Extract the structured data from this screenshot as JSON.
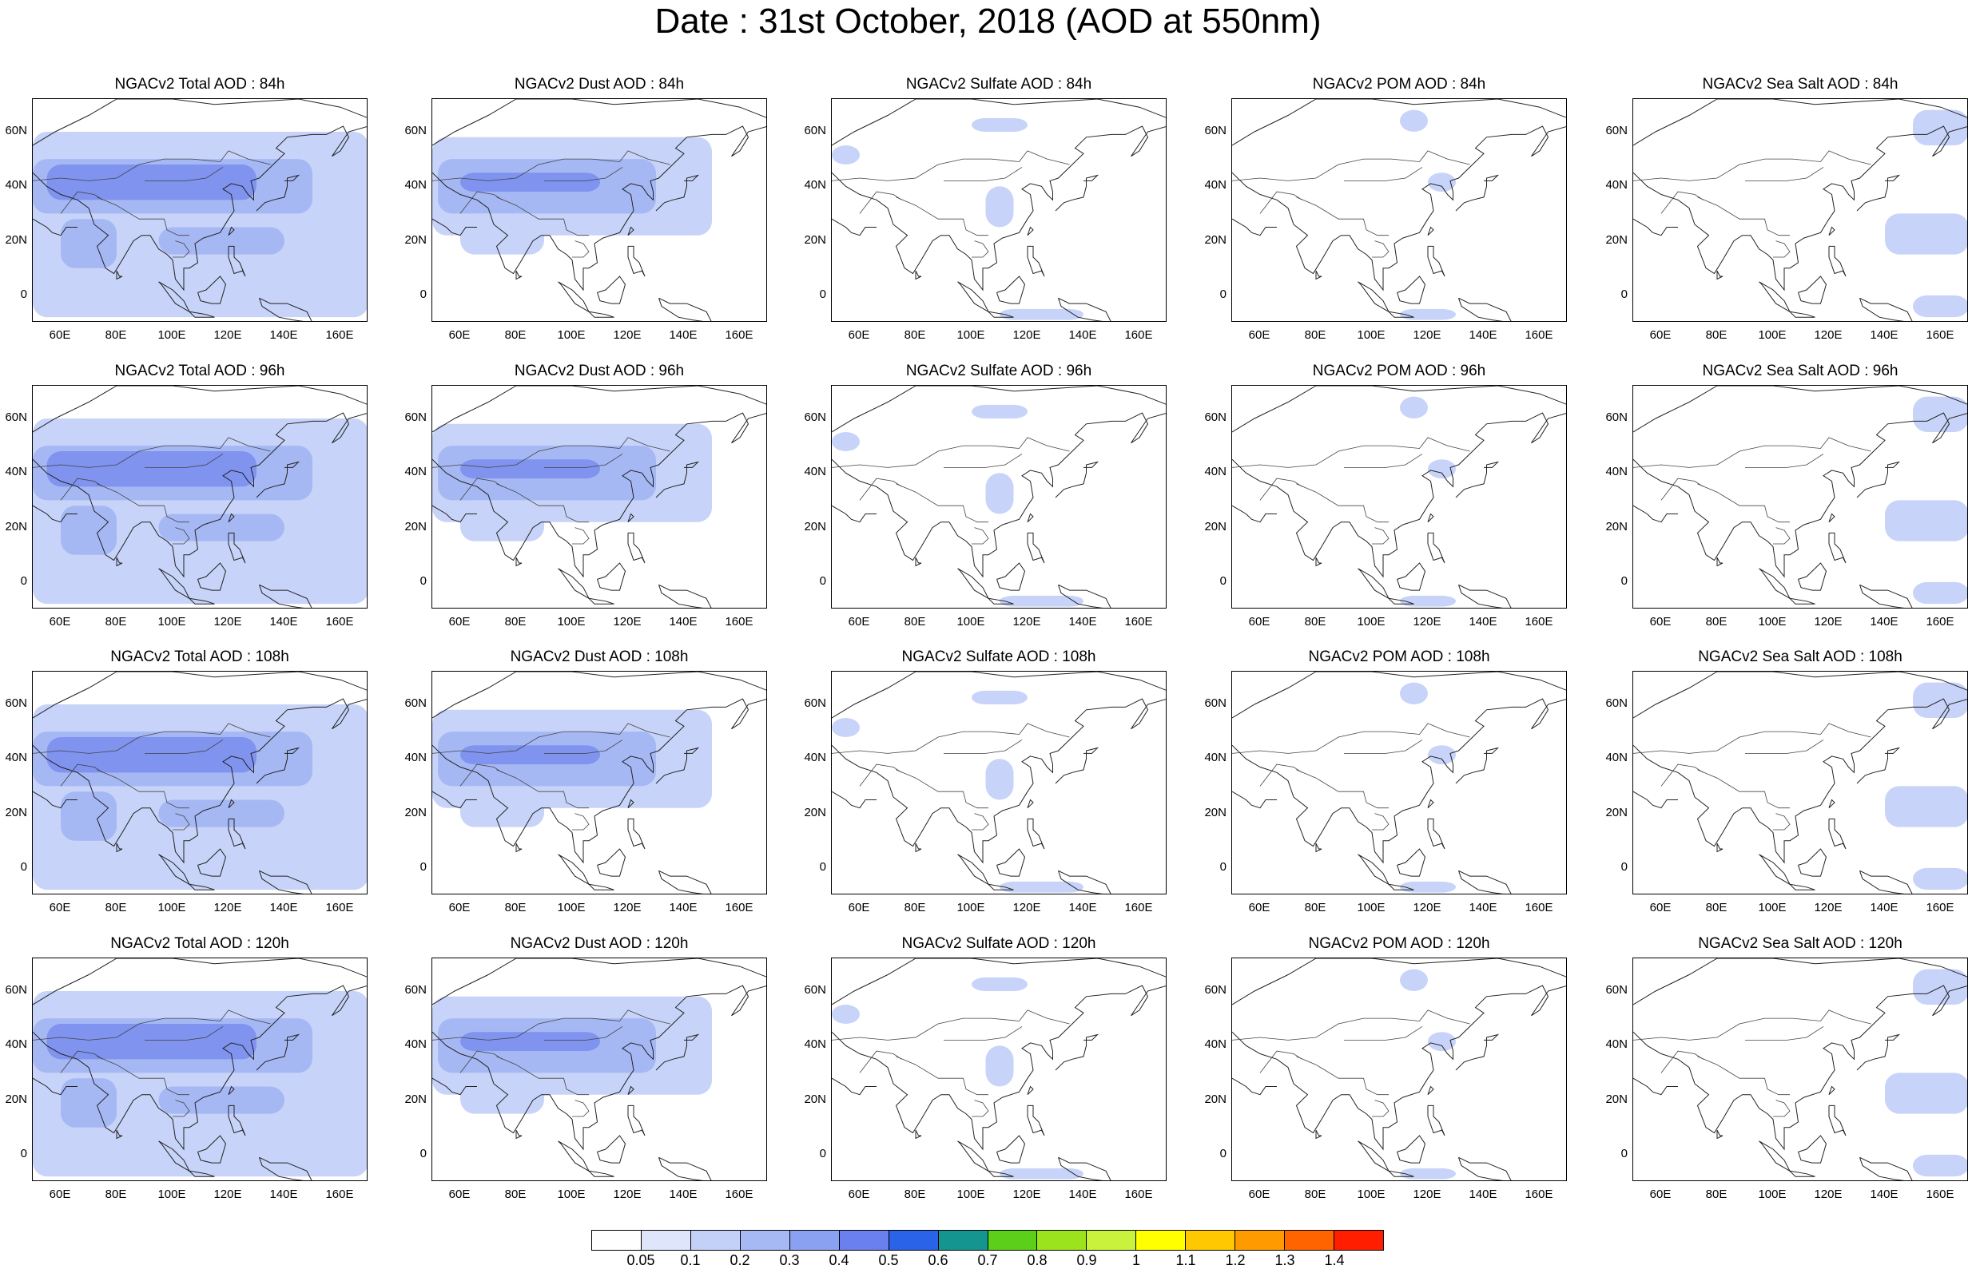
{
  "title": "Date : 31st October, 2018 (AOD at 550nm)",
  "lat_ticks": [
    "60N",
    "40N",
    "20N",
    "0"
  ],
  "lon_ticks": [
    "60E",
    "80E",
    "100E",
    "120E",
    "140E",
    "160E"
  ],
  "panels": [
    [
      "NGACv2 Total AOD : 84h",
      "NGACv2 Dust AOD : 84h",
      "NGACv2 Sulfate AOD : 84h",
      "NGACv2 POM AOD : 84h",
      "NGACv2 Sea Salt AOD : 84h"
    ],
    [
      "NGACv2 Total AOD : 96h",
      "NGACv2 Dust AOD : 96h",
      "NGACv2 Sulfate AOD : 96h",
      "NGACv2 POM AOD : 96h",
      "NGACv2 Sea Salt AOD : 96h"
    ],
    [
      "NGACv2 Total AOD : 108h",
      "NGACv2 Dust AOD : 108h",
      "NGACv2 Sulfate AOD : 108h",
      "NGACv2 POM AOD : 108h",
      "NGACv2 Sea Salt AOD : 108h"
    ],
    [
      "NGACv2 Total AOD : 120h",
      "NGACv2 Dust AOD : 120h",
      "NGACv2 Sulfate AOD : 120h",
      "NGACv2 POM AOD : 120h",
      "NGACv2 Sea Salt  AOD : 120h"
    ]
  ],
  "colorbar": {
    "labels": [
      "0.05",
      "0.1",
      "0.2",
      "0.3",
      "0.4",
      "0.5",
      "0.6",
      "0.7",
      "0.8",
      "0.9",
      "1",
      "1.1",
      "1.2",
      "1.3",
      "1.4"
    ],
    "colors": [
      "#ffffff",
      "#dfe6fb",
      "#c3d0f8",
      "#a7b9f5",
      "#8aa1f1",
      "#6a80ee",
      "#2a62e8",
      "#14958f",
      "#5ccf1a",
      "#9be31c",
      "#c9f23c",
      "#ffff00",
      "#ffc800",
      "#ff9a00",
      "#ff6400",
      "#ff1e00"
    ]
  },
  "colors": {
    "light_aod": "#c7d3f8",
    "mid_aod": "#a6b8f4",
    "high_aod": "#7f93ef"
  }
}
